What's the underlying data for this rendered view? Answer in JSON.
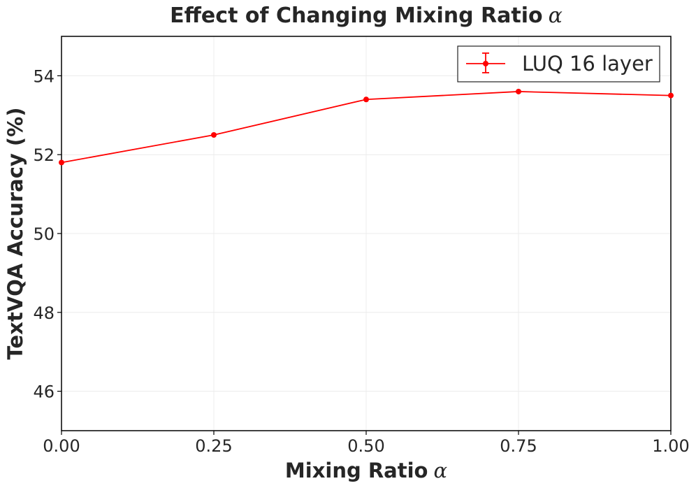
{
  "chart_data": {
    "type": "line",
    "title": "Effect of Changing Mixing Ratio",
    "title_symbol": "α",
    "xlabel": "Mixing Ratio",
    "xlabel_symbol": "α",
    "ylabel": "TextVQA Accuracy (%)",
    "xlim": [
      0.0,
      1.0
    ],
    "ylim": [
      45.0,
      55.0
    ],
    "x_ticks": [
      0.0,
      0.25,
      0.5,
      0.75,
      1.0
    ],
    "x_tick_labels": [
      "0.00",
      "0.25",
      "0.50",
      "0.75",
      "1.00"
    ],
    "y_ticks": [
      46,
      48,
      50,
      52,
      54
    ],
    "y_tick_labels": [
      "46",
      "48",
      "50",
      "52",
      "54"
    ],
    "grid": true,
    "legend_position": "top-right",
    "series": [
      {
        "name": "LUQ 16 layer",
        "color": "#ff0000",
        "marker": "circle",
        "error_bars": true,
        "x": [
          0.0,
          0.25,
          0.5,
          0.75,
          1.0
        ],
        "y": [
          51.8,
          52.5,
          53.4,
          53.6,
          53.5
        ]
      }
    ]
  }
}
